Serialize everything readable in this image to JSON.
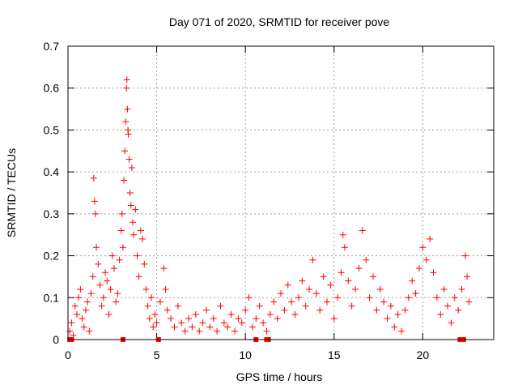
{
  "chart_data": {
    "type": "scatter",
    "title": "Day 071 of 2020, SRMTID for receiver pove",
    "xlabel": "GPS time / hours",
    "ylabel": "SRMTID / TECUs",
    "xlim": [
      0,
      24
    ],
    "ylim": [
      0,
      0.7
    ],
    "xticks": [
      0,
      5,
      10,
      15,
      20
    ],
    "yticks": [
      0,
      0.1,
      0.2,
      0.3,
      0.4,
      0.5,
      0.6,
      0.7
    ],
    "grid": true,
    "marker": "+",
    "color": "#ff0000",
    "series": [
      {
        "name": "SRMTID",
        "points": [
          [
            0.1,
            0.02
          ],
          [
            0.2,
            0.04
          ],
          [
            0.3,
            0.01
          ],
          [
            0.4,
            0.08
          ],
          [
            0.5,
            0.06
          ],
          [
            0.6,
            0.1
          ],
          [
            0.7,
            0.12
          ],
          [
            0.8,
            0.05
          ],
          [
            0.9,
            0.03
          ],
          [
            1.0,
            0.07
          ],
          [
            1.1,
            0.09
          ],
          [
            1.2,
            0.02
          ],
          [
            1.3,
            0.11
          ],
          [
            1.4,
            0.15
          ],
          [
            1.45,
            0.385
          ],
          [
            1.5,
            0.33
          ],
          [
            1.55,
            0.3
          ],
          [
            1.6,
            0.22
          ],
          [
            1.7,
            0.18
          ],
          [
            1.8,
            0.13
          ],
          [
            1.9,
            0.08
          ],
          [
            2.0,
            0.1
          ],
          [
            2.1,
            0.16
          ],
          [
            2.2,
            0.14
          ],
          [
            2.3,
            0.06
          ],
          [
            2.4,
            0.12
          ],
          [
            2.5,
            0.2
          ],
          [
            2.6,
            0.17
          ],
          [
            2.7,
            0.09
          ],
          [
            2.8,
            0.11
          ],
          [
            2.9,
            0.19
          ],
          [
            3.0,
            0.26
          ],
          [
            3.05,
            0.3
          ],
          [
            3.1,
            0.22
          ],
          [
            3.15,
            0.38
          ],
          [
            3.2,
            0.45
          ],
          [
            3.25,
            0.52
          ],
          [
            3.3,
            0.6
          ],
          [
            3.32,
            0.62
          ],
          [
            3.35,
            0.55
          ],
          [
            3.38,
            0.5
          ],
          [
            3.4,
            0.49
          ],
          [
            3.45,
            0.43
          ],
          [
            3.5,
            0.35
          ],
          [
            3.55,
            0.32
          ],
          [
            3.6,
            0.41
          ],
          [
            3.65,
            0.28
          ],
          [
            3.7,
            0.25
          ],
          [
            3.8,
            0.31
          ],
          [
            3.9,
            0.2
          ],
          [
            4.0,
            0.15
          ],
          [
            4.1,
            0.26
          ],
          [
            4.2,
            0.24
          ],
          [
            4.3,
            0.18
          ],
          [
            4.4,
            0.12
          ],
          [
            4.5,
            0.08
          ],
          [
            4.6,
            0.05
          ],
          [
            4.7,
            0.1
          ],
          [
            4.8,
            0.03
          ],
          [
            4.9,
            0.06
          ],
          [
            5.0,
            0.04
          ],
          [
            5.2,
            0.09
          ],
          [
            5.4,
            0.17
          ],
          [
            5.5,
            0.12
          ],
          [
            5.6,
            0.07
          ],
          [
            5.8,
            0.05
          ],
          [
            6.0,
            0.03
          ],
          [
            6.2,
            0.08
          ],
          [
            6.4,
            0.04
          ],
          [
            6.6,
            0.02
          ],
          [
            6.8,
            0.05
          ],
          [
            7.0,
            0.03
          ],
          [
            7.2,
            0.06
          ],
          [
            7.4,
            0.02
          ],
          [
            7.6,
            0.04
          ],
          [
            7.8,
            0.07
          ],
          [
            8.0,
            0.03
          ],
          [
            8.2,
            0.05
          ],
          [
            8.4,
            0.02
          ],
          [
            8.6,
            0.08
          ],
          [
            8.8,
            0.04
          ],
          [
            9.0,
            0.03
          ],
          [
            9.2,
            0.06
          ],
          [
            9.4,
            0.02
          ],
          [
            9.6,
            0.05
          ],
          [
            9.8,
            0.04
          ],
          [
            10.0,
            0.07
          ],
          [
            10.2,
            0.1
          ],
          [
            10.4,
            0.03
          ],
          [
            10.6,
            0.05
          ],
          [
            10.8,
            0.08
          ],
          [
            11.0,
            0.04
          ],
          [
            11.2,
            0.02
          ],
          [
            11.4,
            0.06
          ],
          [
            11.6,
            0.09
          ],
          [
            11.8,
            0.05
          ],
          [
            12.0,
            0.11
          ],
          [
            12.2,
            0.07
          ],
          [
            12.4,
            0.13
          ],
          [
            12.6,
            0.09
          ],
          [
            12.8,
            0.06
          ],
          [
            13.0,
            0.1
          ],
          [
            13.2,
            0.14
          ],
          [
            13.4,
            0.08
          ],
          [
            13.6,
            0.12
          ],
          [
            13.8,
            0.19
          ],
          [
            14.0,
            0.11
          ],
          [
            14.2,
            0.07
          ],
          [
            14.4,
            0.15
          ],
          [
            14.6,
            0.09
          ],
          [
            14.8,
            0.13
          ],
          [
            15.0,
            0.05
          ],
          [
            15.2,
            0.1
          ],
          [
            15.4,
            0.16
          ],
          [
            15.5,
            0.25
          ],
          [
            15.6,
            0.22
          ],
          [
            15.8,
            0.14
          ],
          [
            16.0,
            0.08
          ],
          [
            16.2,
            0.12
          ],
          [
            16.4,
            0.17
          ],
          [
            16.6,
            0.26
          ],
          [
            16.8,
            0.19
          ],
          [
            17.0,
            0.1
          ],
          [
            17.2,
            0.15
          ],
          [
            17.4,
            0.07
          ],
          [
            17.6,
            0.12
          ],
          [
            17.8,
            0.09
          ],
          [
            18.0,
            0.05
          ],
          [
            18.2,
            0.08
          ],
          [
            18.4,
            0.03
          ],
          [
            18.6,
            0.06
          ],
          [
            18.8,
            0.02
          ],
          [
            19.0,
            0.07
          ],
          [
            19.2,
            0.1
          ],
          [
            19.4,
            0.14
          ],
          [
            19.6,
            0.11
          ],
          [
            19.8,
            0.17
          ],
          [
            20.0,
            0.22
          ],
          [
            20.2,
            0.19
          ],
          [
            20.4,
            0.24
          ],
          [
            20.6,
            0.16
          ],
          [
            20.8,
            0.1
          ],
          [
            21.0,
            0.06
          ],
          [
            21.2,
            0.12
          ],
          [
            21.4,
            0.08
          ],
          [
            21.6,
            0.04
          ],
          [
            21.8,
            0.1
          ],
          [
            22.0,
            0.07
          ],
          [
            22.2,
            0.12
          ],
          [
            22.4,
            0.2
          ],
          [
            22.5,
            0.15
          ],
          [
            22.6,
            0.09
          ]
        ],
        "zero_points": [
          0.1,
          0.2,
          3.1,
          5.1,
          10.6,
          11.2,
          11.3,
          22.1,
          22.3
        ]
      }
    ]
  }
}
